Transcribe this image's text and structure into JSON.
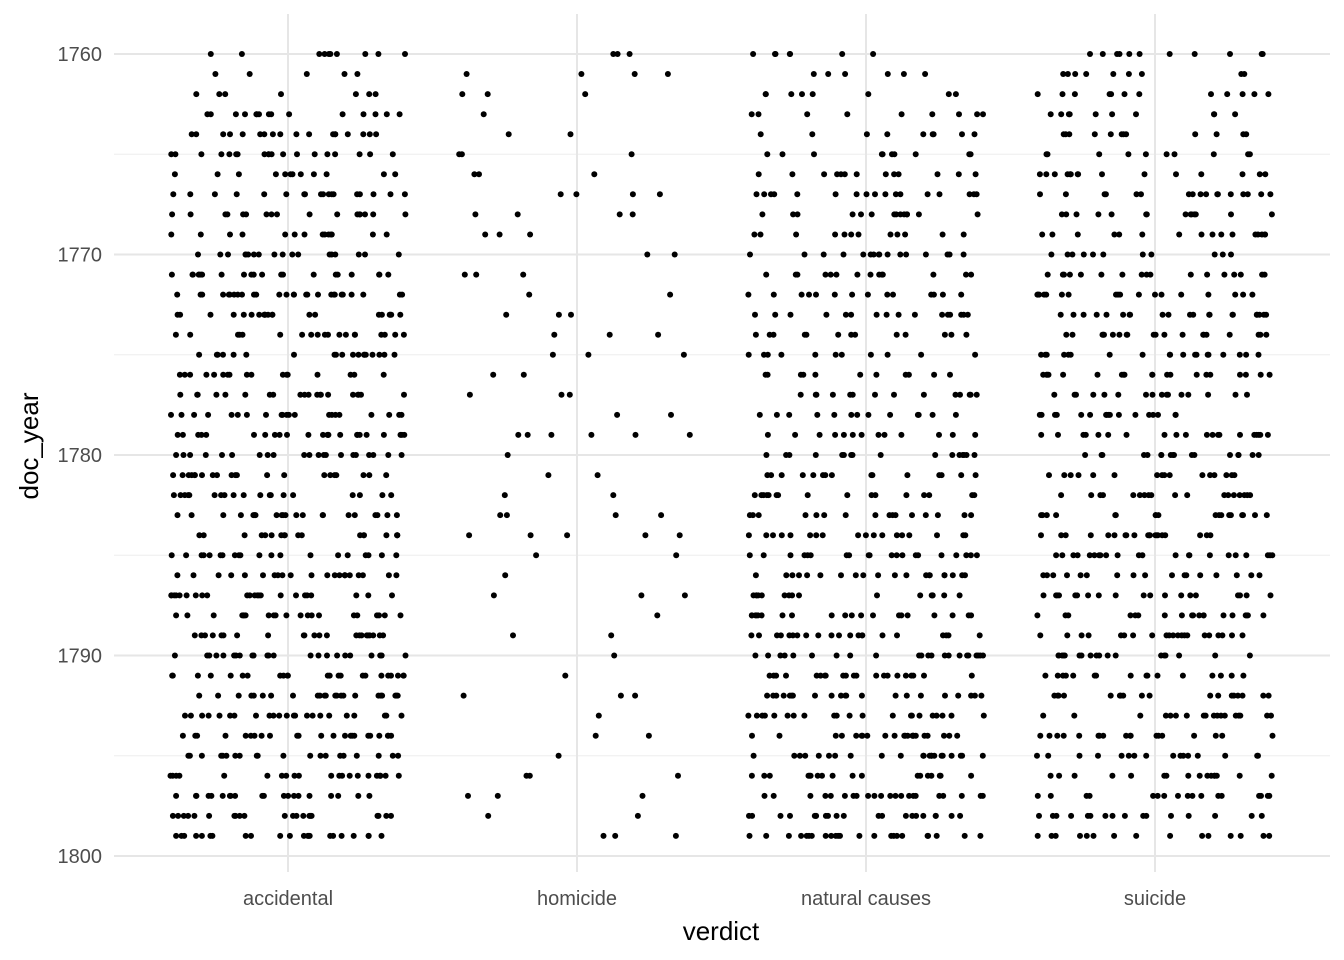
{
  "chart_data": {
    "type": "scatter",
    "title": "",
    "xlabel": "verdict",
    "ylabel": "doc_year",
    "categories": [
      "accidental",
      "homicide",
      "natural causes",
      "suicide"
    ],
    "y_ticks": [
      "1760",
      "1770",
      "1780",
      "1790",
      "1800"
    ],
    "ylim": [
      1760,
      1800
    ],
    "y_reversed": true,
    "jitter": "horizontal, within each category",
    "grid": true,
    "legend": "none",
    "point_color": "#000000",
    "points_per_year": {
      "years_from": 1760,
      "years_to": 1799,
      "accidental": [
        10,
        5,
        7,
        15,
        18,
        19,
        12,
        18,
        17,
        14,
        18,
        21,
        27,
        21,
        19,
        19,
        17,
        20,
        21,
        24,
        21,
        21,
        19,
        21,
        18,
        20,
        22,
        23,
        21,
        22,
        23,
        23,
        23,
        23,
        23,
        20,
        21,
        20,
        21,
        22
      ],
      "homicide": [
        3,
        4,
        3,
        1,
        2,
        3,
        3,
        4,
        4,
        3,
        2,
        3,
        2,
        3,
        3,
        3,
        2,
        3,
        2,
        6,
        1,
        2,
        2,
        4,
        5,
        2,
        1,
        3,
        1,
        2,
        1,
        1,
        3,
        1,
        2,
        1,
        3,
        3,
        2,
        3
      ],
      "natural causes": [
        7,
        6,
        8,
        9,
        9,
        10,
        13,
        17,
        14,
        12,
        16,
        14,
        14,
        16,
        13,
        11,
        11,
        14,
        13,
        13,
        16,
        15,
        16,
        16,
        18,
        20,
        20,
        16,
        20,
        21,
        22,
        21,
        21,
        21,
        22,
        22,
        18,
        22,
        21,
        23
      ],
      "suicide": [
        11,
        9,
        12,
        10,
        12,
        10,
        15,
        17,
        14,
        16,
        11,
        17,
        18,
        21,
        20,
        19,
        20,
        16,
        17,
        20,
        17,
        16,
        18,
        18,
        20,
        22,
        17,
        19,
        19,
        21,
        18,
        16,
        18,
        18,
        18,
        16,
        16,
        17,
        16,
        15
      ]
    }
  }
}
